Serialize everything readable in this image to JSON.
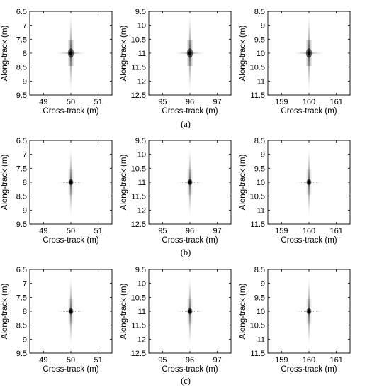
{
  "panel_labels": [
    "(a)",
    "(b)",
    "(c)"
  ],
  "chart_data": [
    {
      "type": "heatmap",
      "row": 0,
      "col": 0,
      "xlabel": "Cross-track (m)",
      "ylabel": "Along-track (m)",
      "xlim": [
        48.5,
        51.5
      ],
      "ylim": [
        6.5,
        9.5
      ],
      "y_reversed": true,
      "xticks": [
        "49",
        "50",
        "51"
      ],
      "yticks": [
        "6.5",
        "7",
        "7.5",
        "8",
        "8.5",
        "9",
        "9.5"
      ],
      "xtick_values": [
        49,
        50,
        51
      ],
      "ytick_values": [
        6.5,
        7,
        7.5,
        8,
        8.5,
        9,
        9.5
      ],
      "peak": [
        50,
        8
      ],
      "grid": false,
      "color": "#000000"
    },
    {
      "type": "heatmap",
      "row": 0,
      "col": 1,
      "xlabel": "Cross-track (m)",
      "ylabel": "Along-track (m)",
      "xlim": [
        94.5,
        97.5
      ],
      "ylim": [
        9.5,
        12.5
      ],
      "y_reversed": true,
      "xticks": [
        "95",
        "96",
        "97"
      ],
      "yticks": [
        "9.5",
        "10",
        "10.5",
        "11",
        "11.5",
        "12",
        "12.5"
      ],
      "xtick_values": [
        95,
        96,
        97
      ],
      "ytick_values": [
        9.5,
        10,
        10.5,
        11,
        11.5,
        12,
        12.5
      ],
      "peak": [
        96,
        11
      ],
      "grid": false,
      "color": "#000000"
    },
    {
      "type": "heatmap",
      "row": 0,
      "col": 2,
      "xlabel": "Cross-track (m)",
      "ylabel": "Along-track (m)",
      "xlim": [
        158.5,
        161.5
      ],
      "ylim": [
        8.5,
        11.5
      ],
      "y_reversed": true,
      "xticks": [
        "159",
        "160",
        "161"
      ],
      "yticks": [
        "8.5",
        "9",
        "9.5",
        "10",
        "10.5",
        "11",
        "11.5"
      ],
      "xtick_values": [
        159,
        160,
        161
      ],
      "ytick_values": [
        8.5,
        9,
        9.5,
        10,
        10.5,
        11,
        11.5
      ],
      "peak": [
        160,
        10
      ],
      "grid": false,
      "color": "#000000"
    },
    {
      "type": "heatmap",
      "row": 1,
      "col": 0,
      "xlabel": "Cross-track (m)",
      "ylabel": "Along-track (m)",
      "xlim": [
        48.5,
        51.5
      ],
      "ylim": [
        6.5,
        9.5
      ],
      "y_reversed": true,
      "xticks": [
        "49",
        "50",
        "51"
      ],
      "yticks": [
        "6.5",
        "7",
        "7.5",
        "8",
        "8.5",
        "9",
        "9.5"
      ],
      "xtick_values": [
        49,
        50,
        51
      ],
      "ytick_values": [
        6.5,
        7,
        7.5,
        8,
        8.5,
        9,
        9.5
      ],
      "peak": [
        50,
        8
      ],
      "grid": false,
      "color": "#000000"
    },
    {
      "type": "heatmap",
      "row": 1,
      "col": 1,
      "xlabel": "Cross-track (m)",
      "ylabel": "Along-track (m)",
      "xlim": [
        94.5,
        97.5
      ],
      "ylim": [
        9.5,
        12.5
      ],
      "y_reversed": true,
      "xticks": [
        "95",
        "96",
        "97"
      ],
      "yticks": [
        "9.5",
        "10",
        "10.5",
        "11",
        "11.5",
        "12",
        "12.5"
      ],
      "xtick_values": [
        95,
        96,
        97
      ],
      "ytick_values": [
        9.5,
        10,
        10.5,
        11,
        11.5,
        12,
        12.5
      ],
      "peak": [
        96,
        11
      ],
      "grid": false,
      "color": "#000000"
    },
    {
      "type": "heatmap",
      "row": 1,
      "col": 2,
      "xlabel": "Cross-track (m)",
      "ylabel": "Along-track (m)",
      "xlim": [
        158.5,
        161.5
      ],
      "ylim": [
        8.5,
        11.5
      ],
      "y_reversed": true,
      "xticks": [
        "159",
        "160",
        "161"
      ],
      "yticks": [
        "8.5",
        "9",
        "9.5",
        "10",
        "10.5",
        "11",
        "11.5"
      ],
      "xtick_values": [
        159,
        160,
        161
      ],
      "ytick_values": [
        8.5,
        9,
        9.5,
        10,
        10.5,
        11,
        11.5
      ],
      "peak": [
        160,
        10
      ],
      "grid": false,
      "color": "#000000"
    },
    {
      "type": "heatmap",
      "row": 2,
      "col": 0,
      "xlabel": "Cross-track (m)",
      "ylabel": "Along-track (m)",
      "xlim": [
        48.5,
        51.5
      ],
      "ylim": [
        6.5,
        9.5
      ],
      "y_reversed": true,
      "xticks": [
        "49",
        "50",
        "51"
      ],
      "yticks": [
        "6.5",
        "7",
        "7.5",
        "8",
        "8.5",
        "9",
        "9.5"
      ],
      "xtick_values": [
        49,
        50,
        51
      ],
      "ytick_values": [
        6.5,
        7,
        7.5,
        8,
        8.5,
        9,
        9.5
      ],
      "peak": [
        50,
        8
      ],
      "grid": false,
      "color": "#000000"
    },
    {
      "type": "heatmap",
      "row": 2,
      "col": 1,
      "xlabel": "Cross-track (m)",
      "ylabel": "Along-track (m)",
      "xlim": [
        94.5,
        97.5
      ],
      "ylim": [
        9.5,
        12.5
      ],
      "y_reversed": true,
      "xticks": [
        "95",
        "96",
        "97"
      ],
      "yticks": [
        "9.5",
        "10",
        "10.5",
        "11",
        "11.5",
        "12",
        "12.5"
      ],
      "xtick_values": [
        95,
        96,
        97
      ],
      "ytick_values": [
        9.5,
        10,
        10.5,
        11,
        11.5,
        12,
        12.5
      ],
      "peak": [
        96,
        11
      ],
      "grid": false,
      "color": "#000000"
    },
    {
      "type": "heatmap",
      "row": 2,
      "col": 2,
      "xlabel": "Cross-track (m)",
      "ylabel": "Along-track (m)",
      "xlim": [
        158.5,
        161.5
      ],
      "ylim": [
        8.5,
        11.5
      ],
      "y_reversed": true,
      "xticks": [
        "159",
        "160",
        "161"
      ],
      "yticks": [
        "8.5",
        "9",
        "9.5",
        "10",
        "10.5",
        "11",
        "11.5"
      ],
      "xtick_values": [
        159,
        160,
        161
      ],
      "ytick_values": [
        8.5,
        9,
        9.5,
        10,
        10.5,
        11,
        11.5
      ],
      "peak": [
        160,
        10
      ],
      "grid": false,
      "color": "#000000"
    }
  ]
}
